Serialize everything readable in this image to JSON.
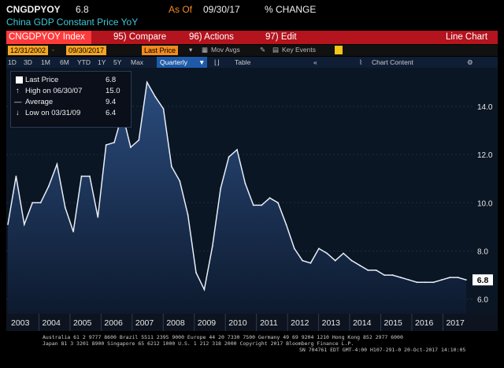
{
  "header": {
    "ticker": "CNGDPYOY",
    "last_value": "6.8",
    "as_of_label": "As Of",
    "as_of_date": "09/30/17",
    "change_label": "% CHANGE",
    "description": "China GDP Constant Price YoY"
  },
  "toolbar": {
    "index_label": "CNGDPYOY Index",
    "compare_label": "95) Compare",
    "actions_label": "96) Actions",
    "edit_label": "97) Edit",
    "chart_type_label": "Line Chart"
  },
  "date_row": {
    "start_date": "12/31/2002",
    "end_date": "09/30/2017",
    "field": "Last Price",
    "mov_avgs": "Mov Avgs",
    "key_events": "Key Events"
  },
  "period_row": {
    "buttons": [
      "1D",
      "3D",
      "1M",
      "6M",
      "YTD",
      "1Y",
      "5Y",
      "Max"
    ],
    "frequency": "Quarterly",
    "table_label": "Table",
    "chart_content_label": "Chart Content"
  },
  "legend": {
    "last_price_label": "Last Price",
    "last_price_value": "6.8",
    "high_label": "High on 06/30/07",
    "high_value": "15.0",
    "average_label": "Average",
    "average_value": "9.4",
    "low_label": "Low on 03/31/09",
    "low_value": "6.4"
  },
  "colors": {
    "line": "#e8eef8",
    "area_top": "#2b4c7e",
    "area_bottom": "#0d1a2e",
    "last_value_badge": "#ffffff"
  },
  "chart_data": {
    "type": "area",
    "ylim": [
      5.4,
      15.6
    ],
    "yticks": [
      "6.0",
      "8.0",
      "10.0",
      "12.0",
      "14.0"
    ],
    "x_labels": [
      "2003",
      "2004",
      "2005",
      "2006",
      "2007",
      "2008",
      "2009",
      "2010",
      "2011",
      "2012",
      "2013",
      "2014",
      "2015",
      "2016",
      "2017"
    ],
    "last_value_label": "6.8",
    "series": [
      {
        "values": [
          9.1,
          11.1,
          9.1,
          10.0,
          10.0,
          10.7,
          11.6,
          9.8,
          8.8,
          11.1,
          11.1,
          9.4,
          12.4,
          12.5,
          13.7,
          12.3,
          12.6,
          15.0,
          14.4,
          13.9,
          11.5,
          10.9,
          9.5,
          7.1,
          6.4,
          8.2,
          10.6,
          11.9,
          12.2,
          10.8,
          9.9,
          9.9,
          10.2,
          10.0,
          9.1,
          8.1,
          7.6,
          7.5,
          8.1,
          7.9,
          7.6,
          7.9,
          7.6,
          7.4,
          7.2,
          7.2,
          7.0,
          7.0,
          6.9,
          6.8,
          6.7,
          6.7,
          6.7,
          6.8,
          6.9,
          6.9,
          6.8
        ]
      }
    ]
  },
  "footer": {
    "line1": "Australia 61 2 9777 8600 Brazil 5511 2395 9000 Europe 44 20 7330 7500 Germany 49 69 9204 1210 Hong Kong 852 2977 6000",
    "line2": "Japan 81 3 3201 8900      Singapore 65 6212 1000      U.S. 1 212 318 2000          Copyright 2017 Bloomberg Finance L.P.",
    "line3": "SN 704761 EDT  GMT-4:00 H107-291-0 20-Oct-2017 14:10:05"
  }
}
